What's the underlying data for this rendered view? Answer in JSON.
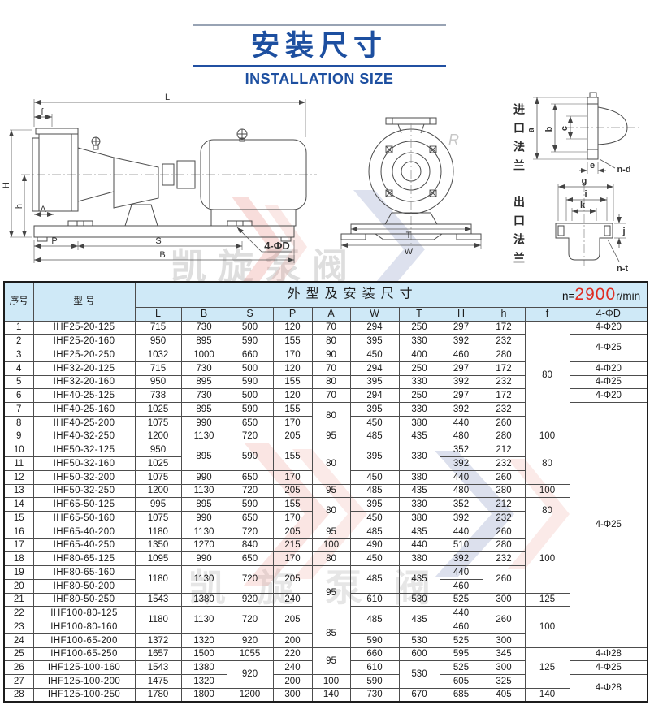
{
  "title": {
    "zh": "安装尺寸",
    "en": "INSTALLATION SIZE"
  },
  "speed": {
    "prefix": "n=",
    "value": "2900",
    "suffix": "r/min"
  },
  "watermark": {
    "text": "凯旋泵阀",
    "letter": "R"
  },
  "diagram": {
    "side": {
      "L": "L",
      "f": "f",
      "H": "H",
      "h": "h",
      "A": "A",
      "P": "P",
      "S": "S",
      "B": "B",
      "phiD": "4-ΦD"
    },
    "front": {
      "T": "T",
      "W": "W"
    },
    "inlet": {
      "title": "进口法兰",
      "a": "a",
      "b": "b",
      "c": "c",
      "e": "e",
      "nd": "n-d"
    },
    "outlet": {
      "title": "出口法兰",
      "g": "g",
      "i": "i",
      "k": "k",
      "j": "j",
      "nt": "n-t"
    }
  },
  "table": {
    "header": {
      "no": "序号",
      "model": "型  号",
      "group": "外型及安装尺寸",
      "dims": [
        "L",
        "B",
        "S",
        "P",
        "A",
        "W",
        "T",
        "H",
        "h",
        "f",
        "4-ΦD"
      ]
    },
    "rows": [
      [
        "1",
        "IHF25-20-125",
        "715",
        "730",
        "500",
        "120",
        "70",
        "294",
        "250",
        "297",
        "172",
        [
          "80",
          8
        ],
        "4-Φ20"
      ],
      [
        "2",
        "IHF25-20-160",
        "950",
        "895",
        "590",
        "155",
        "80",
        "395",
        "330",
        "392",
        "232",
        null,
        [
          "4-Φ25",
          2
        ]
      ],
      [
        "3",
        "IHF25-20-250",
        "1032",
        "1000",
        "660",
        "170",
        "90",
        "450",
        "400",
        "460",
        "280",
        null,
        null
      ],
      [
        "4",
        "IHF32-20-125",
        "715",
        "730",
        "500",
        "120",
        "70",
        "294",
        "250",
        "297",
        "172",
        null,
        "4-Φ20"
      ],
      [
        "5",
        "IHF32-20-160",
        "950",
        "895",
        "590",
        "155",
        "80",
        "395",
        "330",
        "392",
        "232",
        null,
        "4-Φ25"
      ],
      [
        "6",
        "IHF40-25-125",
        "738",
        "730",
        "500",
        "120",
        "70",
        "294",
        "250",
        "297",
        "172",
        null,
        "4-Φ20"
      ],
      [
        "7",
        "IHF40-25-160",
        "1025",
        "895",
        "590",
        "155",
        [
          "80",
          2
        ],
        "395",
        "330",
        "392",
        "232",
        null,
        [
          "4-Φ25",
          18
        ]
      ],
      [
        "8",
        "IHF40-25-200",
        "1075",
        "990",
        "650",
        "170",
        null,
        "450",
        "380",
        "440",
        "260",
        null,
        null
      ],
      [
        "9",
        "IHF40-32-250",
        "1200",
        "1130",
        "720",
        "205",
        "95",
        "485",
        "435",
        "480",
        "280",
        "100",
        null
      ],
      [
        "10",
        "IHF50-32-125",
        "950",
        [
          "895",
          2
        ],
        [
          "590",
          2
        ],
        [
          "155",
          2
        ],
        [
          "80",
          3
        ],
        [
          "395",
          2
        ],
        [
          "330",
          2
        ],
        "352",
        "212",
        [
          "80",
          3
        ],
        null
      ],
      [
        "11",
        "IHF50-32-160",
        "1025",
        null,
        null,
        null,
        null,
        null,
        null,
        "392",
        "232",
        null,
        null
      ],
      [
        "12",
        "IHF50-32-200",
        "1075",
        "990",
        "650",
        "170",
        null,
        "450",
        "380",
        "440",
        "260",
        null,
        null
      ],
      [
        "13",
        "IHF50-32-250",
        "1200",
        "1130",
        "720",
        "205",
        "95",
        "485",
        "435",
        "480",
        "280",
        "100",
        null
      ],
      [
        "14",
        "IHF65-50-125",
        "995",
        "895",
        "590",
        "155",
        [
          "80",
          2
        ],
        "395",
        "330",
        "352",
        "212",
        [
          "80",
          2
        ],
        null
      ],
      [
        "15",
        "IHF65-50-160",
        "1075",
        "990",
        "650",
        "170",
        null,
        "450",
        "380",
        "392",
        "232",
        null,
        null
      ],
      [
        "16",
        "IHF65-40-200",
        "1180",
        "1130",
        "720",
        "205",
        "95",
        "485",
        "435",
        "440",
        "260",
        [
          "100",
          5
        ],
        null
      ],
      [
        "17",
        "IHF65-40-250",
        "1350",
        "1270",
        "840",
        "215",
        "100",
        "490",
        "440",
        "510",
        "280",
        null,
        null
      ],
      [
        "18",
        "IHF80-65-125",
        "1095",
        "990",
        "650",
        "170",
        "80",
        "450",
        "380",
        "392",
        "232",
        null,
        null
      ],
      [
        "19",
        "IHF80-65-160",
        [
          "1180",
          2
        ],
        [
          "1130",
          2
        ],
        [
          "720",
          2
        ],
        [
          "205",
          2
        ],
        [
          "95",
          4
        ],
        [
          "485",
          2
        ],
        [
          "435",
          2
        ],
        "440",
        [
          "260",
          2
        ],
        null,
        null
      ],
      [
        "20",
        "IHF80-50-200",
        null,
        null,
        null,
        null,
        null,
        null,
        null,
        "460",
        null,
        null,
        null
      ],
      [
        "21",
        "IHF80-50-250",
        "1543",
        "1380",
        "920",
        "240",
        null,
        "610",
        "530",
        "525",
        "300",
        "125",
        null
      ],
      [
        "22",
        "IHF100-80-125",
        [
          "1180",
          2
        ],
        [
          "1130",
          2
        ],
        [
          "720",
          2
        ],
        [
          "205",
          2
        ],
        null,
        [
          "485",
          2
        ],
        [
          "435",
          2
        ],
        "440",
        [
          "260",
          2
        ],
        [
          "100",
          3
        ],
        null
      ],
      [
        "23",
        "IHF100-80-160",
        null,
        null,
        null,
        null,
        [
          "85",
          2
        ],
        null,
        null,
        "460",
        null,
        null,
        null
      ],
      [
        "24",
        "IHF100-65-200",
        "1372",
        "1320",
        "920",
        "200",
        null,
        "590",
        "530",
        "525",
        "300",
        null,
        null
      ],
      [
        "25",
        "IHF100-65-250",
        "1657",
        "1500",
        "1055",
        "220",
        [
          "95",
          2
        ],
        "660",
        "600",
        "595",
        "345",
        [
          "125",
          3
        ],
        "4-Φ28"
      ],
      [
        "26",
        "IHF125-100-160",
        "1543",
        "1380",
        [
          "920",
          2
        ],
        "240",
        null,
        "610",
        [
          "530",
          2
        ],
        "525",
        "300",
        null,
        "4-Φ25"
      ],
      [
        "27",
        "IHF125-100-200",
        "1475",
        "1320",
        null,
        "200",
        "100",
        "590",
        null,
        "605",
        "325",
        null,
        [
          "4-Φ28",
          2
        ]
      ],
      [
        "28",
        "IHF125-100-250",
        "1780",
        "1800",
        "1200",
        "300",
        "140",
        "730",
        "670",
        "685",
        "405",
        "140",
        null
      ]
    ]
  }
}
